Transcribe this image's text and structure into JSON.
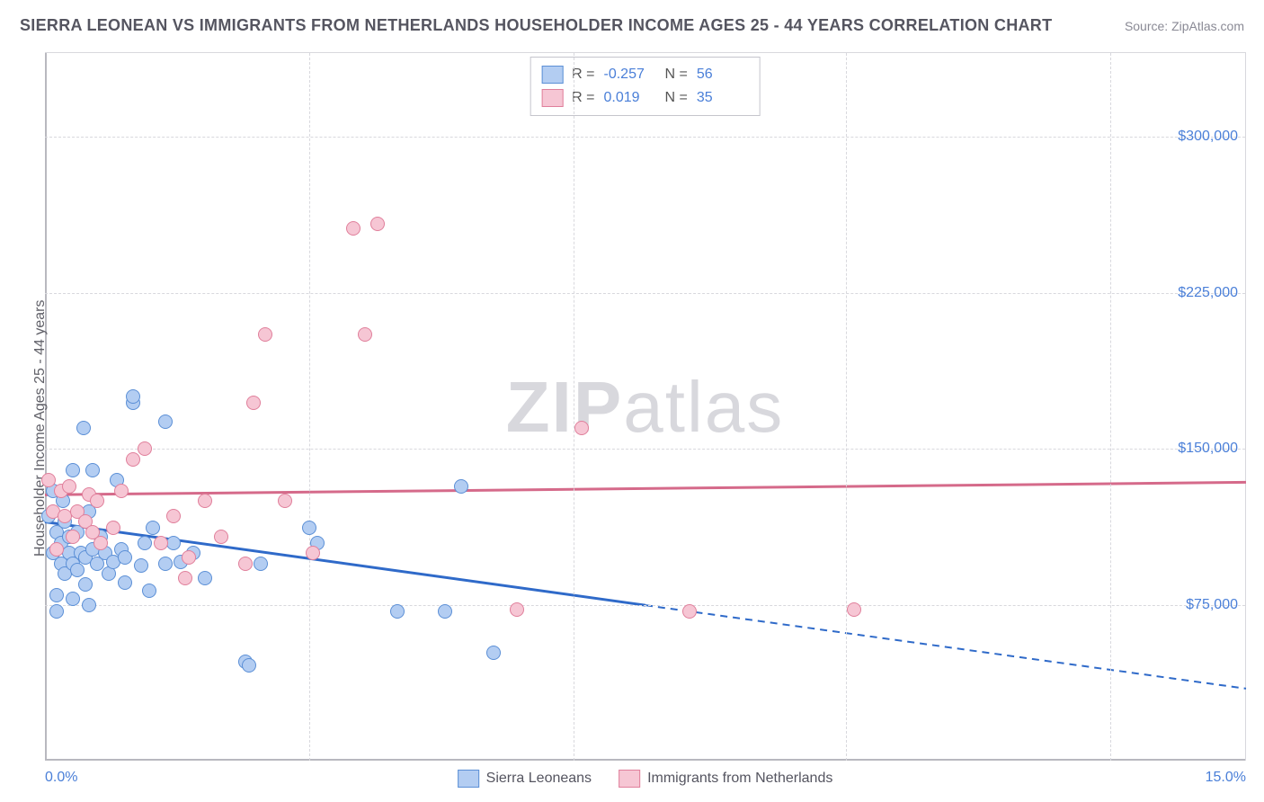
{
  "title": "SIERRA LEONEAN VS IMMIGRANTS FROM NETHERLANDS HOUSEHOLDER INCOME AGES 25 - 44 YEARS CORRELATION CHART",
  "source": "Source: ZipAtlas.com",
  "watermark_bold": "ZIP",
  "watermark_rest": "atlas",
  "y_axis_label": "Householder Income Ages 25 - 44 years",
  "chart": {
    "type": "scatter",
    "background_color": "#ffffff",
    "grid_color": "#d8d8dd",
    "axis_color": "#b8b8bf",
    "marker_radius": 8,
    "xlim": [
      0,
      15
    ],
    "ylim": [
      0,
      340000
    ],
    "x_ticks": [
      {
        "pos": 0,
        "label": "0.0%"
      },
      {
        "pos": 15,
        "label": "15.0%"
      }
    ],
    "y_ticks": [
      {
        "pos": 75000,
        "label": "$75,000"
      },
      {
        "pos": 150000,
        "label": "$150,000"
      },
      {
        "pos": 225000,
        "label": "$225,000"
      },
      {
        "pos": 300000,
        "label": "$300,000"
      }
    ],
    "x_gridlines": [
      3.3,
      6.6,
      10,
      13.3
    ],
    "series": [
      {
        "name": "Sierra Leoneans",
        "fill": "#b3cdf2",
        "stroke": "#5b8fd6",
        "line_color": "#2f6ac9",
        "r": "-0.257",
        "n": "56",
        "regression": {
          "x1": 0,
          "y1": 115000,
          "x2": 7.5,
          "y2": 75000,
          "dash_x2": 15,
          "dash_y2": 35000
        },
        "points": [
          [
            0.05,
            118000
          ],
          [
            0.1,
            130000
          ],
          [
            0.1,
            100000
          ],
          [
            0.15,
            80000
          ],
          [
            0.15,
            110000
          ],
          [
            0.2,
            105000
          ],
          [
            0.2,
            95000
          ],
          [
            0.22,
            125000
          ],
          [
            0.25,
            90000
          ],
          [
            0.25,
            115000
          ],
          [
            0.3,
            100000
          ],
          [
            0.3,
            108000
          ],
          [
            0.35,
            140000
          ],
          [
            0.35,
            95000
          ],
          [
            0.35,
            78000
          ],
          [
            0.4,
            92000
          ],
          [
            0.4,
            110000
          ],
          [
            0.45,
            100000
          ],
          [
            0.48,
            160000
          ],
          [
            0.5,
            98000
          ],
          [
            0.5,
            85000
          ],
          [
            0.55,
            120000
          ],
          [
            0.55,
            75000
          ],
          [
            0.6,
            140000
          ],
          [
            0.6,
            102000
          ],
          [
            0.65,
            95000
          ],
          [
            0.7,
            108000
          ],
          [
            0.75,
            100000
          ],
          [
            0.8,
            90000
          ],
          [
            0.85,
            96000
          ],
          [
            0.9,
            135000
          ],
          [
            0.95,
            102000
          ],
          [
            1.0,
            98000
          ],
          [
            1.0,
            86000
          ],
          [
            1.1,
            172000
          ],
          [
            1.1,
            175000
          ],
          [
            1.2,
            94000
          ],
          [
            1.25,
            105000
          ],
          [
            1.3,
            82000
          ],
          [
            1.35,
            112000
          ],
          [
            1.5,
            163000
          ],
          [
            1.5,
            95000
          ],
          [
            1.6,
            105000
          ],
          [
            1.7,
            96000
          ],
          [
            1.85,
            100000
          ],
          [
            2.0,
            88000
          ],
          [
            2.5,
            48000
          ],
          [
            2.55,
            46000
          ],
          [
            2.7,
            95000
          ],
          [
            3.3,
            112000
          ],
          [
            3.4,
            105000
          ],
          [
            4.4,
            72000
          ],
          [
            5.0,
            72000
          ],
          [
            5.2,
            132000
          ],
          [
            5.6,
            52000
          ],
          [
            0.15,
            72000
          ]
        ]
      },
      {
        "name": "Immigrants from Netherlands",
        "fill": "#f6c6d4",
        "stroke": "#e07f9b",
        "line_color": "#d56a8a",
        "r": "0.019",
        "n": "35",
        "regression": {
          "x1": 0,
          "y1": 128000,
          "x2": 15,
          "y2": 134000
        },
        "points": [
          [
            0.05,
            135000
          ],
          [
            0.1,
            120000
          ],
          [
            0.15,
            102000
          ],
          [
            0.2,
            130000
          ],
          [
            0.25,
            118000
          ],
          [
            0.3,
            132000
          ],
          [
            0.35,
            108000
          ],
          [
            0.4,
            120000
          ],
          [
            0.5,
            115000
          ],
          [
            0.55,
            128000
          ],
          [
            0.6,
            110000
          ],
          [
            0.65,
            125000
          ],
          [
            0.7,
            105000
          ],
          [
            0.85,
            112000
          ],
          [
            0.95,
            130000
          ],
          [
            1.1,
            145000
          ],
          [
            1.25,
            150000
          ],
          [
            1.45,
            105000
          ],
          [
            1.6,
            118000
          ],
          [
            1.8,
            98000
          ],
          [
            1.75,
            88000
          ],
          [
            2.0,
            125000
          ],
          [
            2.5,
            95000
          ],
          [
            2.6,
            172000
          ],
          [
            2.75,
            205000
          ],
          [
            3.0,
            125000
          ],
          [
            3.35,
            100000
          ],
          [
            3.85,
            256000
          ],
          [
            4.15,
            258000
          ],
          [
            4.0,
            205000
          ],
          [
            5.9,
            73000
          ],
          [
            6.7,
            160000
          ],
          [
            8.05,
            72000
          ],
          [
            10.1,
            73000
          ],
          [
            2.2,
            108000
          ]
        ]
      }
    ]
  },
  "legend_r_label": "R =",
  "legend_n_label": "N ="
}
